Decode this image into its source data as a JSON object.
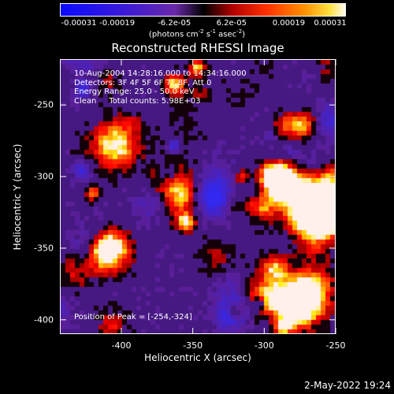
{
  "colorbar": {
    "tick_labels": [
      "-0.00031",
      "-0.00019",
      "-6.2e-05",
      "6.2e-05",
      "0.00019",
      "0.00031"
    ],
    "units_prefix": "(photons cm",
    "units_sup1": "-2",
    "units_mid1": " s",
    "units_sup2": "-1",
    "units_mid2": " asec",
    "units_sup3": "-2",
    "units_suffix": ")"
  },
  "chart_data": {
    "type": "heatmap",
    "title": "Reconstructed RHESSI Image",
    "xlabel": "Heliocentric X (arcsec)",
    "ylabel": "Heliocentric Y (arcsec)",
    "xlim": [
      -443,
      -250
    ],
    "ylim": [
      -410,
      -218
    ],
    "x_ticks": [
      "-400",
      "-350",
      "-300",
      "-250"
    ],
    "x_tick_values": [
      -400,
      -350,
      -300,
      -250
    ],
    "y_ticks": [
      "-250",
      "-300",
      "-350",
      "-400"
    ],
    "y_tick_values": [
      -250,
      -300,
      -350,
      -400
    ],
    "color_range": [
      -0.00031,
      0.00031
    ],
    "peak": [
      -254,
      -324
    ]
  },
  "info": {
    "time": "10-Aug-2004 14:28:16.000 to 14:34:16.000",
    "detectors": "Detectors: 3F 4F 5F 6F 7F 8F, Att 0",
    "energy": "Energy Range: 25.0 - 50.0 keV",
    "clean": "Clean     Total counts: 5.98E+03",
    "peak": "Position of Peak = [-254,-324]"
  },
  "timestamp": "2-May-2022 19:24"
}
